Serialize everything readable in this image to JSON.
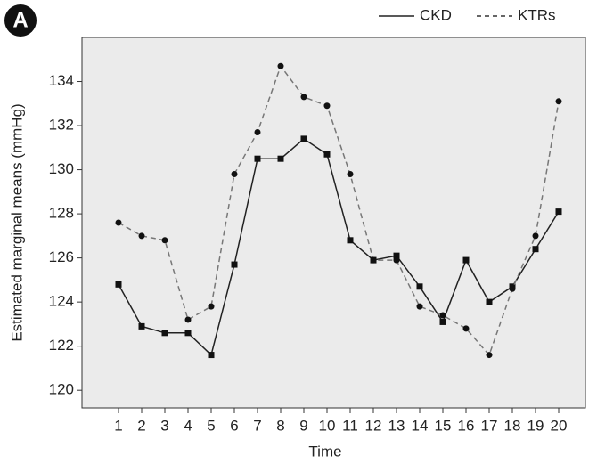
{
  "panel_label": "A",
  "chart_data": {
    "type": "line",
    "x_label": "Time",
    "y_label": "Estimated marginal means (mmHg)",
    "categories": [
      "1",
      "2",
      "3",
      "4",
      "5",
      "6",
      "7",
      "8",
      "9",
      "10",
      "11",
      "12",
      "13",
      "14",
      "15",
      "16",
      "17",
      "18",
      "19",
      "20"
    ],
    "series": [
      {
        "name": "CKD",
        "color": "#222222",
        "line_style": "solid",
        "marker": "square",
        "values": [
          124.8,
          122.9,
          122.6,
          122.6,
          121.6,
          125.7,
          130.5,
          130.5,
          131.4,
          130.7,
          126.8,
          125.9,
          126.1,
          124.7,
          123.1,
          125.9,
          124.0,
          124.7,
          126.4,
          128.1
        ]
      },
      {
        "name": "KTRs",
        "color": "#777777",
        "line_style": "dashed",
        "marker": "circle",
        "values": [
          127.6,
          127.0,
          126.8,
          123.2,
          123.8,
          129.8,
          131.7,
          134.7,
          133.3,
          132.9,
          129.8,
          125.9,
          125.9,
          123.8,
          123.4,
          122.8,
          121.6,
          124.6,
          127.0,
          133.1
        ]
      }
    ],
    "ylim": [
      119.2,
      136
    ],
    "yticks": [
      120,
      122,
      124,
      126,
      128,
      130,
      132,
      134
    ],
    "legend": "top-right"
  }
}
